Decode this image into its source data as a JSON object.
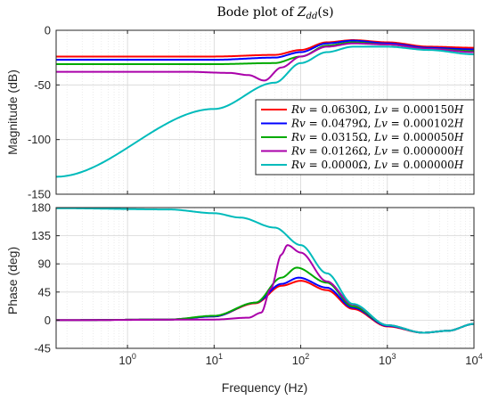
{
  "chart_data": {
    "type": "line",
    "title": "Bode plot of Z_dd(s)",
    "title_prefix": "Bode plot of ",
    "title_symbol": "Z",
    "title_subscript": "dd",
    "title_suffix": "(s)",
    "x_scale": "log",
    "grid": true,
    "legend_position": "inside upper plot, lower-right",
    "magnitude_panel": {
      "ylabel": "Magnitude (dB)",
      "ylim": [
        -150,
        0
      ],
      "yticks": [
        "0",
        "-50",
        "-100",
        "-150"
      ]
    },
    "phase_panel": {
      "ylabel": "Phase (deg)",
      "xlabel": "Frequency  (Hz)",
      "ylim": [
        -45,
        180
      ],
      "yticks": [
        "180",
        "135",
        "90",
        "45",
        "0",
        "-45"
      ],
      "xlim": [
        0.15,
        10000
      ],
      "xticks": [
        {
          "base": "10",
          "exp": "0"
        },
        {
          "base": "10",
          "exp": "1"
        },
        {
          "base": "10",
          "exp": "2"
        },
        {
          "base": "10",
          "exp": "3"
        },
        {
          "base": "10",
          "exp": "4"
        }
      ]
    },
    "series": [
      {
        "name": "Rv = 0.0630Ω, Lv = 0.000150H",
        "color": "#ff0000",
        "magnitude": [
          [
            0.15,
            -24
          ],
          [
            10,
            -24
          ],
          [
            50,
            -22.5
          ],
          [
            100,
            -18
          ],
          [
            200,
            -11
          ],
          [
            400,
            -9
          ],
          [
            1000,
            -11
          ],
          [
            3000,
            -15
          ],
          [
            10000,
            -16
          ]
        ],
        "phase": [
          [
            0.15,
            0
          ],
          [
            3,
            1
          ],
          [
            10,
            6
          ],
          [
            30,
            27
          ],
          [
            60,
            55
          ],
          [
            100,
            63
          ],
          [
            200,
            48
          ],
          [
            400,
            18
          ],
          [
            1000,
            -10
          ],
          [
            2600,
            -20
          ],
          [
            5000,
            -17
          ],
          [
            10000,
            -6
          ]
        ]
      },
      {
        "name": "Rv = 0.0479Ω, Lv = 0.000102H",
        "color": "#0000ff",
        "magnitude": [
          [
            0.15,
            -27
          ],
          [
            10,
            -27
          ],
          [
            50,
            -25
          ],
          [
            100,
            -20
          ],
          [
            200,
            -12
          ],
          [
            400,
            -9.5
          ],
          [
            1000,
            -12
          ],
          [
            3000,
            -16
          ],
          [
            10000,
            -17.5
          ]
        ],
        "phase": [
          [
            0.15,
            0
          ],
          [
            3,
            1
          ],
          [
            10,
            6
          ],
          [
            30,
            28
          ],
          [
            60,
            58
          ],
          [
            95,
            68
          ],
          [
            200,
            52
          ],
          [
            400,
            20
          ],
          [
            1000,
            -9
          ],
          [
            2600,
            -20
          ],
          [
            5000,
            -17
          ],
          [
            10000,
            -6
          ]
        ]
      },
      {
        "name": "Rv = 0.0315Ω, Lv = 0.000050H",
        "color": "#00aa00",
        "magnitude": [
          [
            0.15,
            -31
          ],
          [
            10,
            -31
          ],
          [
            50,
            -30
          ],
          [
            100,
            -24
          ],
          [
            200,
            -14
          ],
          [
            400,
            -11
          ],
          [
            1000,
            -13
          ],
          [
            3000,
            -17
          ],
          [
            10000,
            -19
          ]
        ],
        "phase": [
          [
            0.15,
            0
          ],
          [
            3,
            1
          ],
          [
            10,
            7
          ],
          [
            30,
            28
          ],
          [
            60,
            68
          ],
          [
            90,
            84
          ],
          [
            200,
            60
          ],
          [
            400,
            22
          ],
          [
            1000,
            -8
          ],
          [
            2600,
            -20
          ],
          [
            5000,
            -17
          ],
          [
            10000,
            -6
          ]
        ]
      },
      {
        "name": "Rv = 0.0126Ω, Lv = 0.000000H",
        "color": "#aa00aa",
        "magnitude": [
          [
            0.15,
            -38
          ],
          [
            5,
            -38
          ],
          [
            15,
            -39
          ],
          [
            25,
            -41
          ],
          [
            38,
            -46
          ],
          [
            60,
            -34
          ],
          [
            100,
            -24
          ],
          [
            200,
            -15
          ],
          [
            400,
            -12
          ],
          [
            1000,
            -13
          ],
          [
            3000,
            -17
          ],
          [
            10000,
            -20
          ]
        ],
        "phase": [
          [
            0.15,
            0
          ],
          [
            10,
            1
          ],
          [
            25,
            4
          ],
          [
            35,
            12
          ],
          [
            45,
            50
          ],
          [
            60,
            105
          ],
          [
            70,
            120
          ],
          [
            100,
            108
          ],
          [
            200,
            62
          ],
          [
            400,
            25
          ],
          [
            1000,
            -8
          ],
          [
            2600,
            -20
          ],
          [
            5000,
            -17
          ],
          [
            10000,
            -6
          ]
        ]
      },
      {
        "name": "Rv = 0.0000Ω, Lv = 0.000000H",
        "color": "#00bbbb",
        "magnitude": [
          [
            0.15,
            -134
          ],
          [
            10,
            -72
          ],
          [
            50,
            -48
          ],
          [
            100,
            -30
          ],
          [
            200,
            -20
          ],
          [
            400,
            -15
          ],
          [
            1000,
            -15
          ],
          [
            3000,
            -18
          ],
          [
            10000,
            -22
          ]
        ],
        "phase": [
          [
            0.15,
            179
          ],
          [
            3,
            177
          ],
          [
            10,
            171
          ],
          [
            20,
            164
          ],
          [
            50,
            148
          ],
          [
            100,
            120
          ],
          [
            200,
            75
          ],
          [
            400,
            26
          ],
          [
            1000,
            -8
          ],
          [
            2600,
            -20
          ],
          [
            5000,
            -17
          ],
          [
            10000,
            -6
          ]
        ]
      }
    ],
    "legend": [
      {
        "rv": "0.0630Ω",
        "lv": "0.000150"
      },
      {
        "rv": "0.0479Ω",
        "lv": "0.000102"
      },
      {
        "rv": "0.0315Ω",
        "lv": "0.000050"
      },
      {
        "rv": "0.0126Ω",
        "lv": "0.000000"
      },
      {
        "rv": "0.0000Ω",
        "lv": "0.000000"
      }
    ]
  }
}
